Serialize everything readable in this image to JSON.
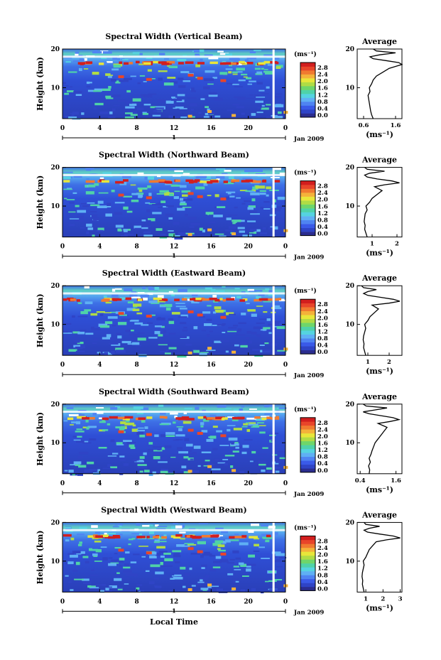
{
  "chart_data": {
    "type": "heatmap",
    "panels": [
      {
        "title": "Spectral Width (Vertical Beam)",
        "profile_xticks": [
          "0.6",
          "1.6"
        ],
        "profile_xrange": [
          0.4,
          1.8
        ],
        "profile": {
          "height": [
            2.0,
            3,
            4,
            5,
            6,
            7,
            8,
            9,
            10,
            11,
            12,
            13,
            14,
            15,
            15.5,
            16,
            16.5,
            17,
            17.5,
            18,
            18.5,
            19,
            19.5,
            20
          ],
          "value": [
            0.9,
            0.85,
            0.82,
            0.8,
            0.78,
            0.76,
            0.74,
            0.8,
            0.78,
            0.85,
            0.9,
            1.0,
            1.2,
            1.4,
            1.6,
            1.8,
            1.7,
            1.3,
            0.9,
            0.8,
            1.1,
            1.6,
            1.0,
            0.9
          ]
        }
      },
      {
        "title": "Spectral Width (Northward Beam)",
        "profile_xticks": [
          "1",
          "2"
        ],
        "profile_xrange": [
          0.4,
          2.2
        ],
        "profile": {
          "height": [
            2.0,
            3,
            4,
            5,
            6,
            7,
            8,
            9,
            10,
            11,
            12,
            13,
            14,
            15,
            15.5,
            16,
            16.5,
            17,
            17.5,
            18,
            18.5,
            19,
            19.5,
            20
          ],
          "value": [
            0.8,
            0.75,
            0.7,
            0.72,
            0.68,
            0.7,
            0.72,
            0.8,
            0.75,
            0.9,
            1.0,
            1.2,
            1.4,
            1.1,
            1.5,
            2.1,
            1.8,
            1.2,
            0.8,
            0.7,
            0.9,
            1.5,
            0.8,
            0.7
          ]
        }
      },
      {
        "title": "Spectral Width (Eastward Beam)",
        "profile_xticks": [
          "1",
          "2"
        ],
        "profile_xrange": [
          0.5,
          2.6
        ],
        "profile": {
          "height": [
            2.0,
            3,
            4,
            5,
            6,
            7,
            8,
            9,
            10,
            11,
            12,
            13,
            14,
            15,
            15.5,
            16,
            16.5,
            17,
            17.5,
            18,
            18.5,
            19,
            19.5,
            20
          ],
          "value": [
            0.9,
            0.85,
            0.8,
            0.82,
            0.78,
            0.8,
            0.85,
            0.9,
            0.85,
            1.0,
            1.1,
            1.3,
            1.5,
            1.2,
            2.0,
            2.5,
            2.2,
            1.6,
            1.0,
            0.8,
            1.0,
            1.4,
            0.8,
            0.7
          ]
        }
      },
      {
        "title": "Spectral Width (Southward Beam)",
        "profile_xticks": [
          "0.4",
          "1.6"
        ],
        "profile_xrange": [
          0.3,
          1.8
        ],
        "profile": {
          "height": [
            2.0,
            3,
            4,
            5,
            6,
            7,
            8,
            9,
            10,
            11,
            12,
            13,
            14,
            15,
            15.5,
            16,
            16.5,
            17,
            17.5,
            18,
            18.5,
            19,
            19.5,
            20
          ],
          "value": [
            0.7,
            0.72,
            0.68,
            0.74,
            0.7,
            0.76,
            0.8,
            0.85,
            0.9,
            1.0,
            1.1,
            1.2,
            1.3,
            1.0,
            1.4,
            1.7,
            1.5,
            1.1,
            0.7,
            0.5,
            0.9,
            1.3,
            0.6,
            0.5
          ]
        }
      },
      {
        "title": "Spectral Width (Westward Beam)",
        "profile_xticks": [
          "1",
          "2",
          "3"
        ],
        "profile_xrange": [
          0.5,
          3.1
        ],
        "profile": {
          "height": [
            2.0,
            3,
            4,
            5,
            6,
            7,
            8,
            9,
            10,
            11,
            12,
            13,
            14,
            15,
            15.5,
            16,
            16.5,
            17,
            17.5,
            18,
            18.5,
            19,
            19.5,
            20
          ],
          "value": [
            0.9,
            0.85,
            0.8,
            0.82,
            0.78,
            0.8,
            0.85,
            0.9,
            0.85,
            1.0,
            1.1,
            1.2,
            1.4,
            1.6,
            2.2,
            3.0,
            2.6,
            1.8,
            1.1,
            0.9,
            1.2,
            1.8,
            1.0,
            0.9
          ]
        }
      }
    ],
    "ylabel": "Height (km)",
    "ylim": [
      2,
      20
    ],
    "yticks": [
      "10",
      "20"
    ],
    "xlabel": "Local Time",
    "xlim": [
      0,
      24
    ],
    "xticks": [
      "0",
      "4",
      "8",
      "12",
      "16",
      "20",
      "0"
    ],
    "day_label": "1",
    "date_label": "Jan 2009",
    "colorbar": {
      "unit_label": "(ms⁻¹)",
      "ticks": [
        "2.8",
        "2.4",
        "2.0",
        "1.6",
        "1.2",
        "0.8",
        "0.4",
        "0.0"
      ],
      "colors": [
        "#2b2d8f",
        "#2f44c6",
        "#3a5ae8",
        "#4f84f2",
        "#5fb0f4",
        "#55d3e0",
        "#4fd2a8",
        "#6fd66a",
        "#b0dc45",
        "#e8e63a",
        "#f4b23a",
        "#f07a30",
        "#e8452a",
        "#d21e1e"
      ]
    },
    "profile_title": "Average",
    "profile_xlabel": "(ms⁻¹)",
    "profile_yticks": [
      "10",
      "20"
    ]
  }
}
